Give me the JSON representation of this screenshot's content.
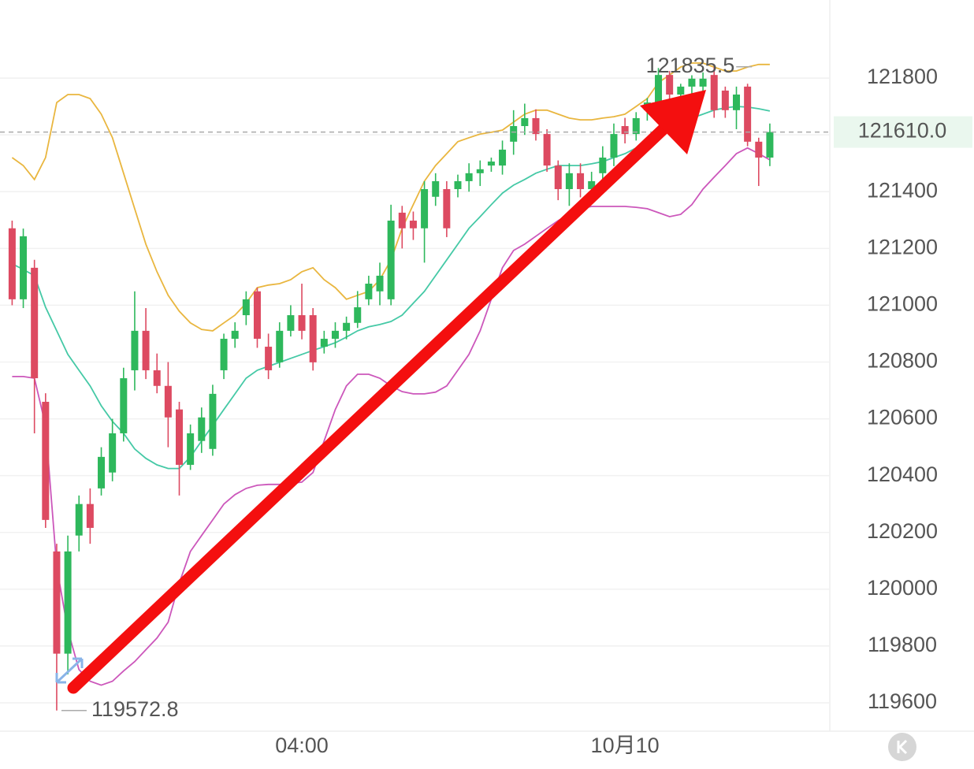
{
  "chart_data": {
    "type": "candlestick",
    "categories": [
      null,
      null,
      null,
      null,
      null,
      null,
      null,
      null,
      null,
      null,
      null,
      null,
      null,
      null,
      null,
      null,
      null,
      null,
      null,
      null,
      null,
      null,
      null,
      null,
      null,
      null,
      "04:00",
      null,
      null,
      null,
      null,
      null,
      null,
      null,
      null,
      null,
      null,
      null,
      null,
      null,
      null,
      null,
      null,
      null,
      null,
      null,
      null,
      null,
      null,
      null,
      null,
      null,
      null,
      null,
      null,
      "10月10",
      null,
      null,
      null,
      null,
      null,
      null,
      null,
      null,
      null,
      null,
      null,
      null,
      null
    ],
    "open": [
      121271,
      121021,
      121132,
      120660,
      120133,
      119773,
      120189,
      120300,
      120355,
      120411,
      120549,
      120771,
      120910,
      120771,
      120716,
      120633,
      120438,
      120522,
      120494,
      120771,
      120882,
      120965,
      121049,
      120854,
      120799,
      120910,
      120965,
      120965,
      120854,
      120882,
      120910,
      120938,
      121021,
      121049,
      121021,
      121326,
      121298,
      121271,
      121382,
      121409,
      121409,
      121437,
      121465,
      121492,
      121492,
      121576,
      121631,
      121659,
      121603,
      121492,
      121409,
      121465,
      121409,
      121465,
      121520,
      121631,
      121603,
      121687,
      121714,
      121811,
      121742,
      121770,
      121770,
      121811,
      121756,
      121687,
      121770,
      121576,
      121520
    ],
    "high": [
      121298,
      121270,
      121160,
      120690,
      120160,
      120189,
      120330,
      120355,
      120500,
      120600,
      120780,
      121049,
      120990,
      120830,
      120800,
      120660,
      120580,
      120640,
      120720,
      120900,
      120940,
      121049,
      121062,
      120900,
      120940,
      121000,
      121076,
      120990,
      120910,
      120940,
      120960,
      121050,
      121104,
      121150,
      121354,
      121350,
      121330,
      121437,
      121465,
      121437,
      121460,
      121500,
      121510,
      121520,
      121580,
      121687,
      121710,
      121690,
      121620,
      121510,
      121500,
      121500,
      121470,
      121560,
      121640,
      121660,
      121680,
      121730,
      121835.5,
      121825,
      121780,
      121810,
      121820,
      121840,
      121770,
      121770,
      121780,
      121590,
      121640
    ],
    "low": [
      121000,
      120990,
      120549,
      120216,
      119572.8,
      119700,
      120133,
      120160,
      120330,
      120380,
      120520,
      120700,
      120740,
      120690,
      120500,
      120330,
      120420,
      120480,
      120470,
      120740,
      120850,
      120930,
      120850,
      120740,
      120780,
      120890,
      120880,
      120770,
      120830,
      120850,
      120880,
      120920,
      121000,
      121000,
      121000,
      121200,
      121230,
      121150,
      121350,
      121240,
      121380,
      121400,
      121420,
      121470,
      121460,
      121530,
      121600,
      121580,
      121470,
      121370,
      121350,
      121380,
      121380,
      121430,
      121490,
      121570,
      121580,
      121650,
      121690,
      121700,
      121720,
      121740,
      121750,
      121660,
      121660,
      121620,
      121560,
      121420,
      121490
    ],
    "close": [
      121021,
      121243,
      120743,
      120244,
      119773,
      120133,
      120300,
      120216,
      120466,
      120549,
      120743,
      120910,
      120771,
      120716,
      120605,
      120438,
      120549,
      120605,
      120688,
      120882,
      120910,
      121021,
      120882,
      120771,
      120910,
      120965,
      120910,
      120799,
      120882,
      120910,
      120938,
      120993,
      121076,
      121104,
      121298,
      121271,
      121271,
      121409,
      121437,
      121271,
      121437,
      121465,
      121479,
      121506,
      121548,
      121631,
      121659,
      121603,
      121492,
      121409,
      121465,
      121409,
      121437,
      121520,
      121603,
      121603,
      121659,
      121714,
      121811,
      121742,
      121770,
      121798,
      121798,
      121687,
      121687,
      121742,
      121576,
      121520,
      121610
    ],
    "up_color": "#2eb85c",
    "down_color": "#dd4a61",
    "lines": [
      {
        "color": "#e9b63f",
        "values": [
          121520,
          121492,
          121443,
          121520,
          121714,
          121742,
          121742,
          121728,
          121673,
          121590,
          121465,
          121340,
          121215,
          121118,
          121035,
          120979,
          120938,
          120915,
          120910,
          120938,
          120965,
          121007,
          121062,
          121071,
          121076,
          121090,
          121118,
          121132,
          121090,
          121062,
          121021,
          121035,
          121049,
          121090,
          121160,
          121271,
          121354,
          121437,
          121492,
          121534,
          121576,
          121590,
          121603,
          121609,
          121617,
          121645,
          121673,
          121687,
          121687,
          121673,
          121659,
          121653,
          121653,
          121659,
          121664,
          121673,
          121700,
          121728,
          121784,
          121811,
          121839,
          121853,
          121853,
          121839,
          121825,
          121825,
          121839,
          121848,
          121848
        ]
      },
      {
        "color": "#45c9a6",
        "values": [
          121146,
          121126,
          121104,
          120993,
          120910,
          120827,
          120771,
          120716,
          120646,
          120591,
          120549,
          120494,
          120461,
          120438,
          120425,
          120425,
          120466,
          120522,
          120577,
          120633,
          120688,
          120743,
          120771,
          120785,
          120799,
          120813,
          120827,
          120841,
          120854,
          120868,
          120888,
          120910,
          120924,
          120932,
          120943,
          120965,
          121007,
          121049,
          121104,
          121160,
          121215,
          121271,
          121312,
          121354,
          121395,
          121423,
          121443,
          121465,
          121479,
          121492,
          121492,
          121492,
          121498,
          121506,
          121520,
          121534,
          121554,
          121576,
          121598,
          121617,
          121637,
          121659,
          121673,
          121687,
          121695,
          121700,
          121698,
          121692,
          121684
        ]
      },
      {
        "color": "#cc57bb",
        "values": [
          120749,
          120749,
          120743,
          120577,
          120078,
          119856,
          119717,
          119676,
          119662,
          119676,
          119712,
          119745,
          119787,
          119828,
          119884,
          120022,
          120133,
          120189,
          120244,
          120300,
          120333,
          120355,
          120366,
          120369,
          120369,
          120372,
          120377,
          120411,
          120522,
          120633,
          120716,
          120757,
          120757,
          120743,
          120716,
          120696,
          120688,
          120688,
          120694,
          120716,
          120771,
          120827,
          120910,
          121021,
          121132,
          121193,
          121215,
          121243,
          121271,
          121298,
          121320,
          121340,
          121348,
          121348,
          121348,
          121348,
          121345,
          121340,
          121326,
          121312,
          121320,
          121354,
          121409,
          121451,
          121492,
          121534,
          121554,
          121534,
          121512
        ]
      }
    ],
    "max_label": "121835.5",
    "min_label": "119572.8",
    "last_price": {
      "value": 121610,
      "label": "121610.0"
    },
    "ylim": [
      119500,
      122075
    ],
    "yticks": [
      119600,
      119800,
      120000,
      120200,
      120400,
      120600,
      120800,
      121000,
      121200,
      121400,
      121600,
      121800
    ],
    "grid": true
  }
}
